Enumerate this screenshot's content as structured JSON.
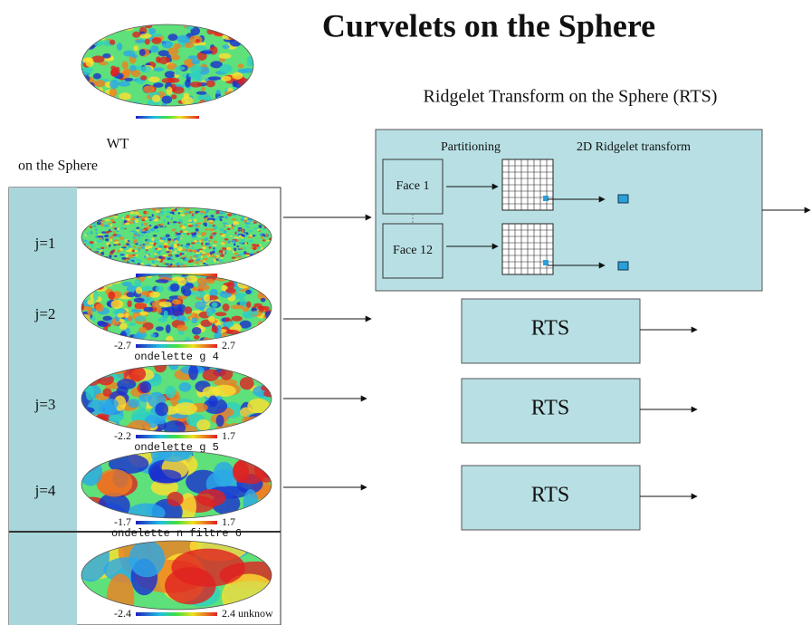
{
  "title": "Curvelets on the Sphere",
  "rts_title": "Ridgelet Transform on the Sphere (RTS)",
  "wt_label": {
    "line1": "WT",
    "line2": "on the Sphere"
  },
  "scales": [
    {
      "label": "j=1"
    },
    {
      "label": "j=2",
      "min": "-2.7",
      "max": "2.7",
      "caption": "ondelette g 4"
    },
    {
      "label": "j=3",
      "min": "-2.2",
      "max": "1.7",
      "caption": "ondelette g 5"
    },
    {
      "label": "j=4",
      "min": "-1.7",
      "max": "1.7",
      "caption": "ondelette n filtre 6"
    }
  ],
  "coarse": {
    "min": "-2.4",
    "max": "2.4 unknow"
  },
  "rts_box": {
    "partitioning": "Partitioning",
    "ridgelet": "2D Ridgelet transform",
    "faces": [
      "Face 1",
      "Face 12"
    ]
  },
  "rts_blocks": [
    "RTS",
    "RTS",
    "RTS"
  ]
}
